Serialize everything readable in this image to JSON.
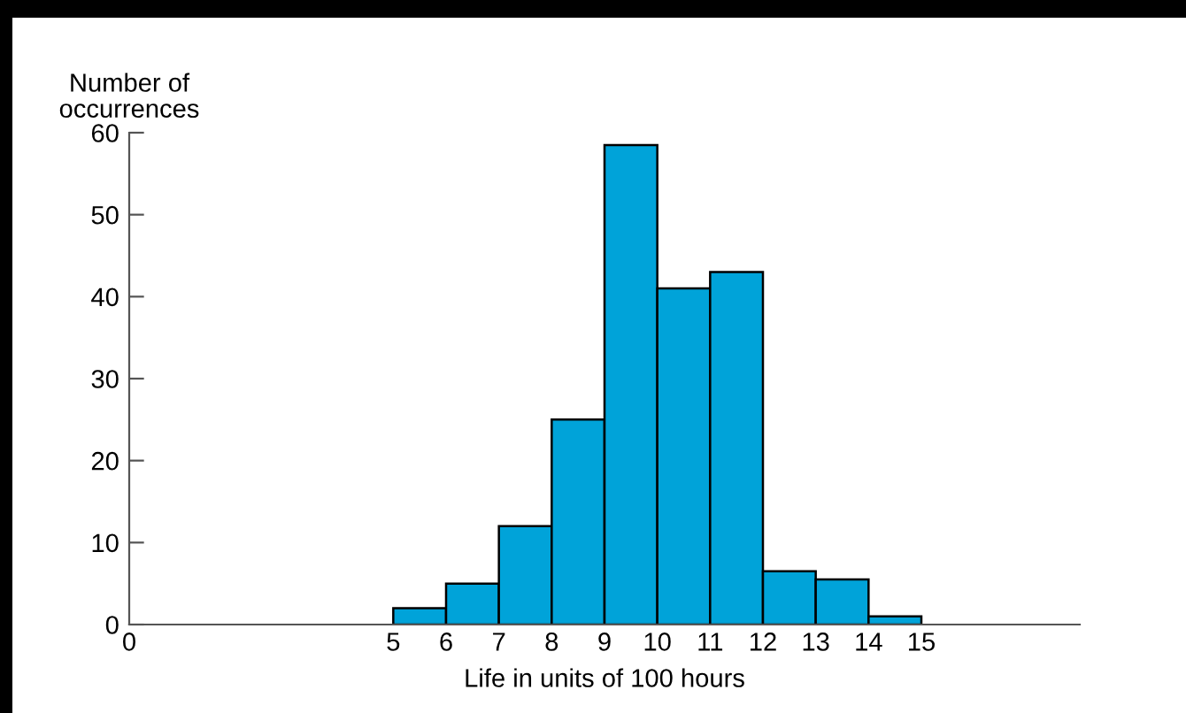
{
  "chart_data": {
    "type": "histogram",
    "xlabel": "Life in units of 100 hours",
    "ylabel": "Number of\noccurrences",
    "bins": [
      5,
      6,
      7,
      8,
      9,
      10,
      11,
      12,
      13,
      14,
      15
    ],
    "values": [
      2,
      5,
      12,
      25,
      58.5,
      41,
      43,
      6.5,
      5.5,
      1
    ],
    "color": "#00a3d9",
    "xlim": [
      0,
      18
    ],
    "xticks": [
      0,
      5,
      6,
      7,
      8,
      9,
      10,
      11,
      12,
      13,
      14,
      15
    ],
    "ylim": [
      0,
      60
    ],
    "yticks": [
      0,
      10,
      20,
      30,
      40,
      50,
      60
    ],
    "grid": false
  }
}
